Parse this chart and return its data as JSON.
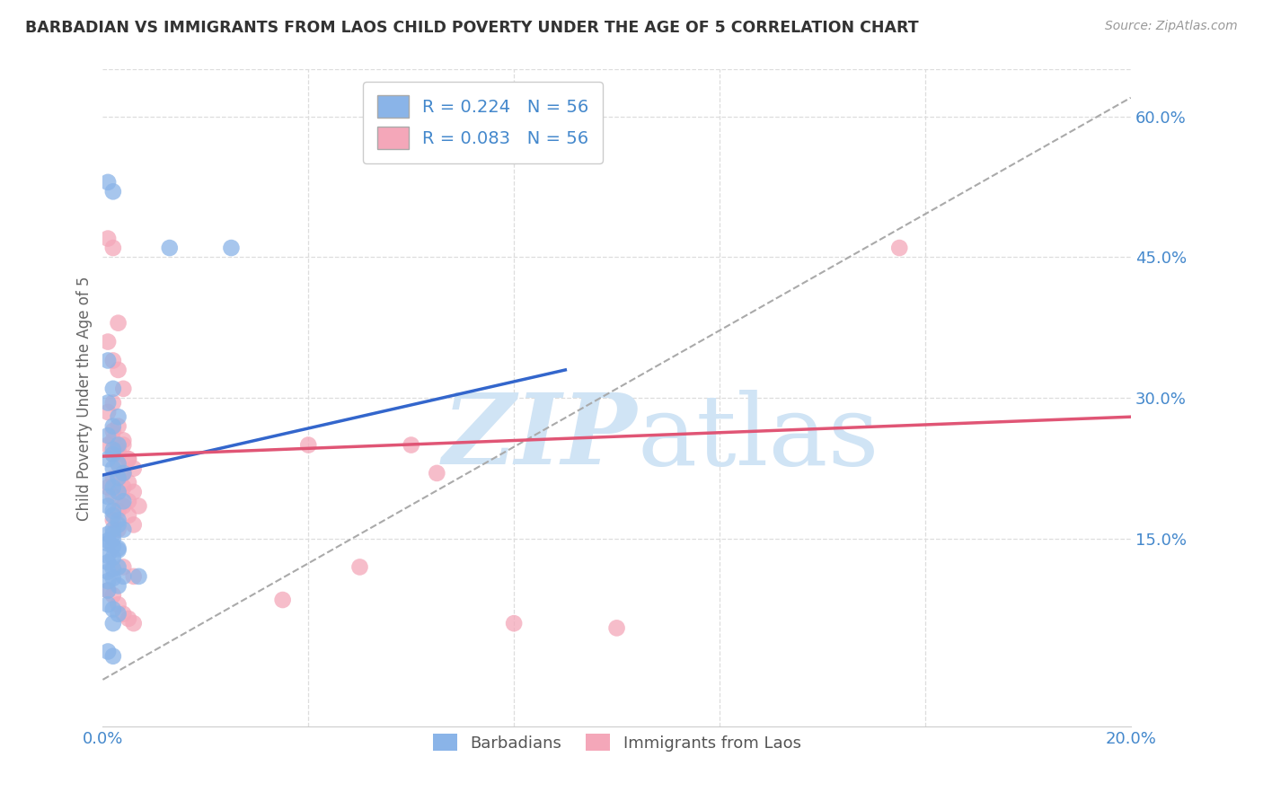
{
  "title": "BARBADIAN VS IMMIGRANTS FROM LAOS CHILD POVERTY UNDER THE AGE OF 5 CORRELATION CHART",
  "source": "Source: ZipAtlas.com",
  "ylabel": "Child Poverty Under the Age of 5",
  "xlim": [
    0.0,
    0.2
  ],
  "ylim": [
    -0.05,
    0.65
  ],
  "yticks_right": [
    0.15,
    0.3,
    0.45,
    0.6
  ],
  "ytick_right_labels": [
    "15.0%",
    "30.0%",
    "45.0%",
    "60.0%"
  ],
  "barbadian_color": "#8ab4e8",
  "laos_color": "#f4a7b9",
  "barbadian_line_color": "#3366cc",
  "laos_line_color": "#e05575",
  "r_barbadian": 0.224,
  "r_laos": 0.083,
  "n": 56,
  "legend_labels": [
    "Barbadians",
    "Immigrants from Laos"
  ],
  "background_color": "#ffffff",
  "grid_color": "#dddddd",
  "title_color": "#333333",
  "axis_color": "#4488cc",
  "watermark_color": "#d0e4f5",
  "blue_line_x": [
    0.0,
    0.09
  ],
  "blue_line_y": [
    0.218,
    0.33
  ],
  "pink_line_x": [
    0.0,
    0.2
  ],
  "pink_line_y": [
    0.238,
    0.28
  ],
  "diag_line_x": [
    0.0,
    0.2
  ],
  "diag_line_y": [
    0.0,
    0.62
  ],
  "barbadian_x": [
    0.001,
    0.002,
    0.001,
    0.003,
    0.002,
    0.001,
    0.002,
    0.003,
    0.001,
    0.002,
    0.003,
    0.004,
    0.002,
    0.001,
    0.003,
    0.002,
    0.001,
    0.002,
    0.004,
    0.003,
    0.001,
    0.002,
    0.003,
    0.002,
    0.001,
    0.003,
    0.002,
    0.001,
    0.004,
    0.002,
    0.001,
    0.003,
    0.002,
    0.001,
    0.002,
    0.003,
    0.001,
    0.002,
    0.001,
    0.003,
    0.002,
    0.001,
    0.004,
    0.002,
    0.001,
    0.003,
    0.013,
    0.001,
    0.025,
    0.001,
    0.002,
    0.003,
    0.007,
    0.002,
    0.001,
    0.002
  ],
  "barbadian_y": [
    0.53,
    0.52,
    0.34,
    0.28,
    0.31,
    0.295,
    0.27,
    0.25,
    0.26,
    0.24,
    0.23,
    0.22,
    0.245,
    0.235,
    0.215,
    0.225,
    0.21,
    0.205,
    0.19,
    0.2,
    0.185,
    0.175,
    0.17,
    0.18,
    0.195,
    0.165,
    0.16,
    0.155,
    0.16,
    0.15,
    0.145,
    0.14,
    0.155,
    0.148,
    0.142,
    0.138,
    0.132,
    0.13,
    0.125,
    0.12,
    0.118,
    0.115,
    0.11,
    0.108,
    0.105,
    0.1,
    0.46,
    0.095,
    0.46,
    0.08,
    0.075,
    0.07,
    0.11,
    0.06,
    0.03,
    0.025
  ],
  "laos_x": [
    0.001,
    0.002,
    0.003,
    0.001,
    0.002,
    0.003,
    0.004,
    0.002,
    0.001,
    0.003,
    0.002,
    0.004,
    0.003,
    0.001,
    0.005,
    0.002,
    0.003,
    0.004,
    0.002,
    0.001,
    0.003,
    0.002,
    0.004,
    0.003,
    0.005,
    0.002,
    0.006,
    0.003,
    0.002,
    0.004,
    0.003,
    0.005,
    0.006,
    0.004,
    0.003,
    0.005,
    0.004,
    0.006,
    0.005,
    0.007,
    0.004,
    0.006,
    0.05,
    0.06,
    0.08,
    0.1,
    0.065,
    0.035,
    0.04,
    0.155,
    0.001,
    0.002,
    0.003,
    0.004,
    0.005,
    0.006
  ],
  "laos_y": [
    0.47,
    0.46,
    0.38,
    0.36,
    0.34,
    0.33,
    0.31,
    0.295,
    0.285,
    0.27,
    0.265,
    0.255,
    0.245,
    0.25,
    0.235,
    0.24,
    0.23,
    0.22,
    0.215,
    0.205,
    0.2,
    0.195,
    0.185,
    0.18,
    0.175,
    0.17,
    0.165,
    0.16,
    0.255,
    0.25,
    0.24,
    0.235,
    0.225,
    0.22,
    0.215,
    0.21,
    0.205,
    0.2,
    0.19,
    0.185,
    0.12,
    0.11,
    0.12,
    0.25,
    0.06,
    0.055,
    0.22,
    0.085,
    0.25,
    0.46,
    0.095,
    0.09,
    0.08,
    0.07,
    0.065,
    0.06
  ]
}
